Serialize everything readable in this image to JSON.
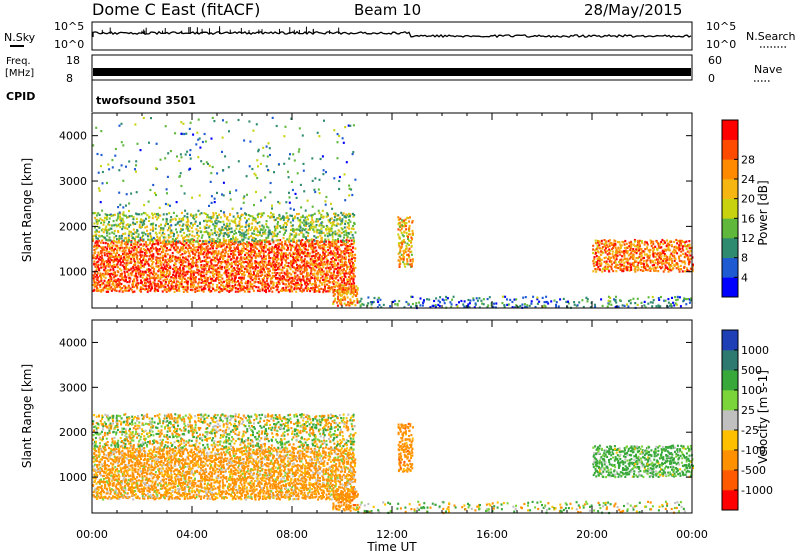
{
  "header": {
    "title": "Dome C East (fitACF)",
    "beam": "Beam 10",
    "date": "28/May/2015"
  },
  "summary": {
    "nsky": {
      "label": "N.Sky",
      "ticks": [
        "10^5",
        "10^0"
      ]
    },
    "nsearch": {
      "label": "N.Search",
      "ticks": [
        "10^5",
        "10^0"
      ]
    },
    "freq": {
      "label": [
        "Freq.",
        "[MHz]"
      ],
      "ticks": [
        18,
        8
      ],
      "range": [
        8,
        18
      ]
    },
    "nave": {
      "label": "Nave",
      "ticks": [
        60,
        0
      ],
      "range": [
        0,
        60
      ]
    },
    "cpid": {
      "label": "CPID",
      "value": "twofsound 3501"
    }
  },
  "chart_data": [
    {
      "type": "heatmap",
      "name": "power",
      "ylabel": "Slant Range [km]",
      "yticks": [
        1000,
        2000,
        3000,
        4000
      ],
      "ylim": [
        200,
        4500
      ],
      "xlim": [
        0,
        24
      ],
      "colorbar": {
        "label": "Power [dB]",
        "ticks": [
          4,
          8,
          12,
          16,
          20,
          24,
          28
        ],
        "range": [
          0,
          32
        ],
        "colors": [
          "#0000ff",
          "#1e5ad2",
          "#2f8b6f",
          "#5fb83c",
          "#c8d20f",
          "#f6b612",
          "#ff8a00",
          "#ff4b00",
          "#ff0000"
        ]
      },
      "scatter_regions": [
        {
          "x": [
            0.0,
            10.5
          ],
          "y": [
            550,
            1700
          ],
          "value": 26,
          "density": 0.8
        },
        {
          "x": [
            0.0,
            10.5
          ],
          "y": [
            1650,
            2300
          ],
          "value": 14,
          "density": 0.5
        },
        {
          "x": [
            0.0,
            10.5
          ],
          "y": [
            2200,
            4400
          ],
          "value": 10,
          "density": 0.04
        },
        {
          "x": [
            9.6,
            10.6
          ],
          "y": [
            250,
            700
          ],
          "value": 22,
          "density": 0.7
        },
        {
          "x": [
            12.2,
            12.8
          ],
          "y": [
            1100,
            2200
          ],
          "value": 20,
          "density": 0.6
        },
        {
          "x": [
            20.0,
            24.0
          ],
          "y": [
            1000,
            1700
          ],
          "value": 24,
          "density": 0.7
        },
        {
          "x": [
            10.5,
            24.0
          ],
          "y": [
            200,
            450
          ],
          "value": 8,
          "density": 0.25
        }
      ]
    },
    {
      "type": "heatmap",
      "name": "velocity",
      "xlabel": "Time UT",
      "ylabel": "Slant Range [km]",
      "xticks": [
        "00:00",
        "04:00",
        "08:00",
        "12:00",
        "16:00",
        "20:00",
        "00:00"
      ],
      "yticks": [
        1000,
        2000,
        3000,
        4000
      ],
      "ylim": [
        200,
        4500
      ],
      "xlim": [
        0,
        24
      ],
      "colorbar": {
        "label": "Velocity [m s-1]",
        "ticks": [
          "1000",
          "500",
          "100",
          "25",
          "-25",
          "-100",
          "-500",
          "-1000"
        ],
        "colors": [
          "#1f3fb7",
          "#2f7a70",
          "#38a83b",
          "#7bd43a",
          "#c0c0c0",
          "#ffc000",
          "#ff9000",
          "#ff5a00",
          "#ff0000"
        ]
      },
      "scatter_regions": [
        {
          "x": [
            0.0,
            10.5
          ],
          "y": [
            500,
            1650
          ],
          "value": -200,
          "density": 0.8
        },
        {
          "x": [
            0.0,
            10.5
          ],
          "y": [
            1650,
            2400
          ],
          "value": 0,
          "density": 0.5
        },
        {
          "x": [
            9.6,
            10.6
          ],
          "y": [
            250,
            700
          ],
          "value": -300,
          "density": 0.7
        },
        {
          "x": [
            12.2,
            12.8
          ],
          "y": [
            1100,
            2200
          ],
          "value": -300,
          "density": 0.6
        },
        {
          "x": [
            20.0,
            24.0
          ],
          "y": [
            1000,
            1700
          ],
          "value": 200,
          "density": 0.7
        },
        {
          "x": [
            10.5,
            24.0
          ],
          "y": [
            200,
            450
          ],
          "value": 20,
          "density": 0.2
        }
      ]
    }
  ]
}
